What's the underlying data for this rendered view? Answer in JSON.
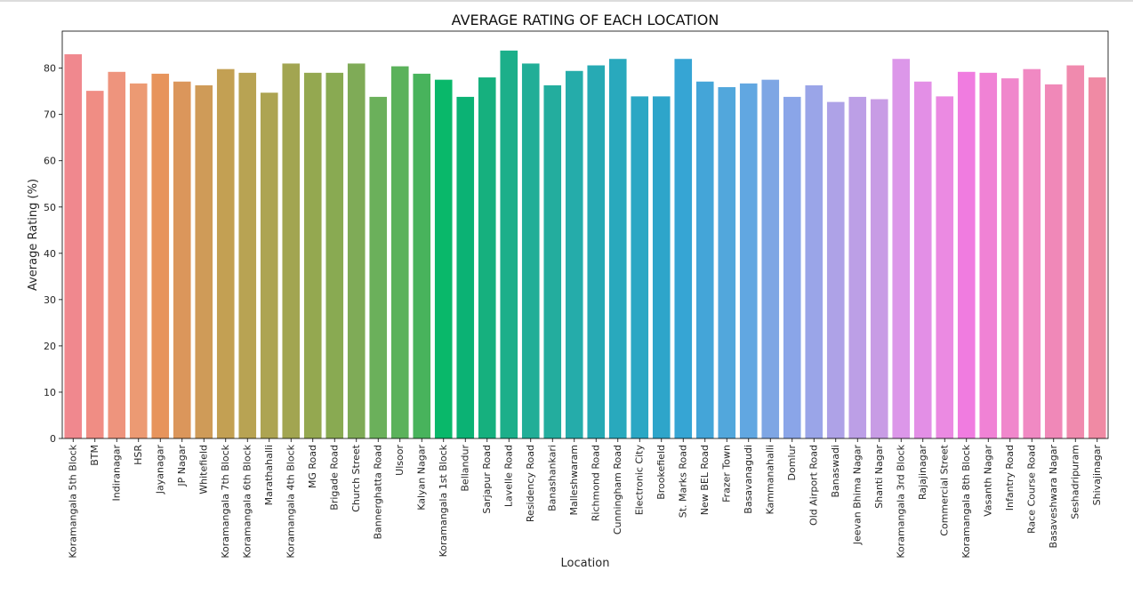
{
  "chart_data": {
    "type": "bar",
    "title": "AVERAGE RATING OF EACH LOCATION",
    "xlabel": "Location",
    "ylabel": "Average Rating (%)",
    "ylim": [
      0,
      88
    ],
    "yticks": [
      0,
      10,
      20,
      30,
      40,
      50,
      60,
      70,
      80
    ],
    "grid": false,
    "categories": [
      "Koramangala 5th Block",
      "BTM",
      "Indiranagar",
      "HSR",
      "Jayanagar",
      "JP Nagar",
      "Whitefield",
      "Koramangala 7th Block",
      "Koramangala 6th Block",
      "Marathahalli",
      "Koramangala 4th Block",
      "MG Road",
      "Brigade Road",
      "Church Street",
      "Bannerghatta Road",
      "Ulsoor",
      "Kalyan Nagar",
      "Koramangala 1st Block",
      "Bellandur",
      "Sarjapur Road",
      "Lavelle Road",
      "Residency Road",
      "Banashankari",
      "Malleshwaram",
      "Richmond Road",
      "Cunningham Road",
      "Electronic City",
      "Brookefield",
      "St. Marks Road",
      "New BEL Road",
      "Frazer Town",
      "Basavanagudi",
      "Kammanahalli",
      "Domlur",
      "Old Airport Road",
      "Banaswadi",
      "Jeevan Bhima Nagar",
      "Shanti Nagar",
      "Koramangala 3rd Block",
      "Rajajinagar",
      "Commercial Street",
      "Koramangala 8th Block",
      "Vasanth Nagar",
      "Infantry Road",
      "Race Course Road",
      "Basaveshwara Nagar",
      "Seshadripuram",
      "Shivajinagar"
    ],
    "values": [
      83.0,
      75.1,
      79.2,
      76.7,
      78.8,
      77.1,
      76.3,
      79.8,
      79.0,
      74.7,
      81.0,
      79.0,
      79.0,
      81.0,
      73.8,
      80.4,
      78.8,
      77.5,
      73.8,
      78.0,
      83.8,
      81.0,
      76.3,
      79.4,
      80.6,
      82.0,
      73.9,
      73.9,
      82.0,
      77.1,
      75.9,
      76.7,
      77.5,
      73.8,
      76.3,
      72.7,
      73.8,
      73.3,
      82.0,
      77.1,
      73.9,
      79.2,
      79.0,
      77.8,
      79.8,
      76.5,
      80.6,
      78.0
    ],
    "colors": [
      "#f0888e",
      "#f08d84",
      "#ee947d",
      "#ec9a73",
      "#e7945c",
      "#db965b",
      "#cf9b58",
      "#c3a053",
      "#b8a353",
      "#ada452",
      "#a2a551",
      "#94a850",
      "#89aa52",
      "#7fab57",
      "#6bb05b",
      "#5bb25b",
      "#48b35c",
      "#09b86a",
      "#0bb274",
      "#16b07e",
      "#1caf8a",
      "#21ae97",
      "#23ad9e",
      "#25acaa",
      "#27aab4",
      "#29a9bd",
      "#2ba7c4",
      "#2ea5ca",
      "#36a5d4",
      "#44a5d8",
      "#52a7dc",
      "#61a7e1",
      "#7ea6e4",
      "#8aa5e8",
      "#9aa5e8",
      "#aea2e7",
      "#bc9fe6",
      "#c89ce5",
      "#dc97e9",
      "#e38fe6",
      "#eb8ae2",
      "#f07ce0",
      "#f082d5",
      "#f087cc",
      "#f089c3",
      "#f088b8",
      "#f08aae",
      "#f08aa4"
    ]
  }
}
